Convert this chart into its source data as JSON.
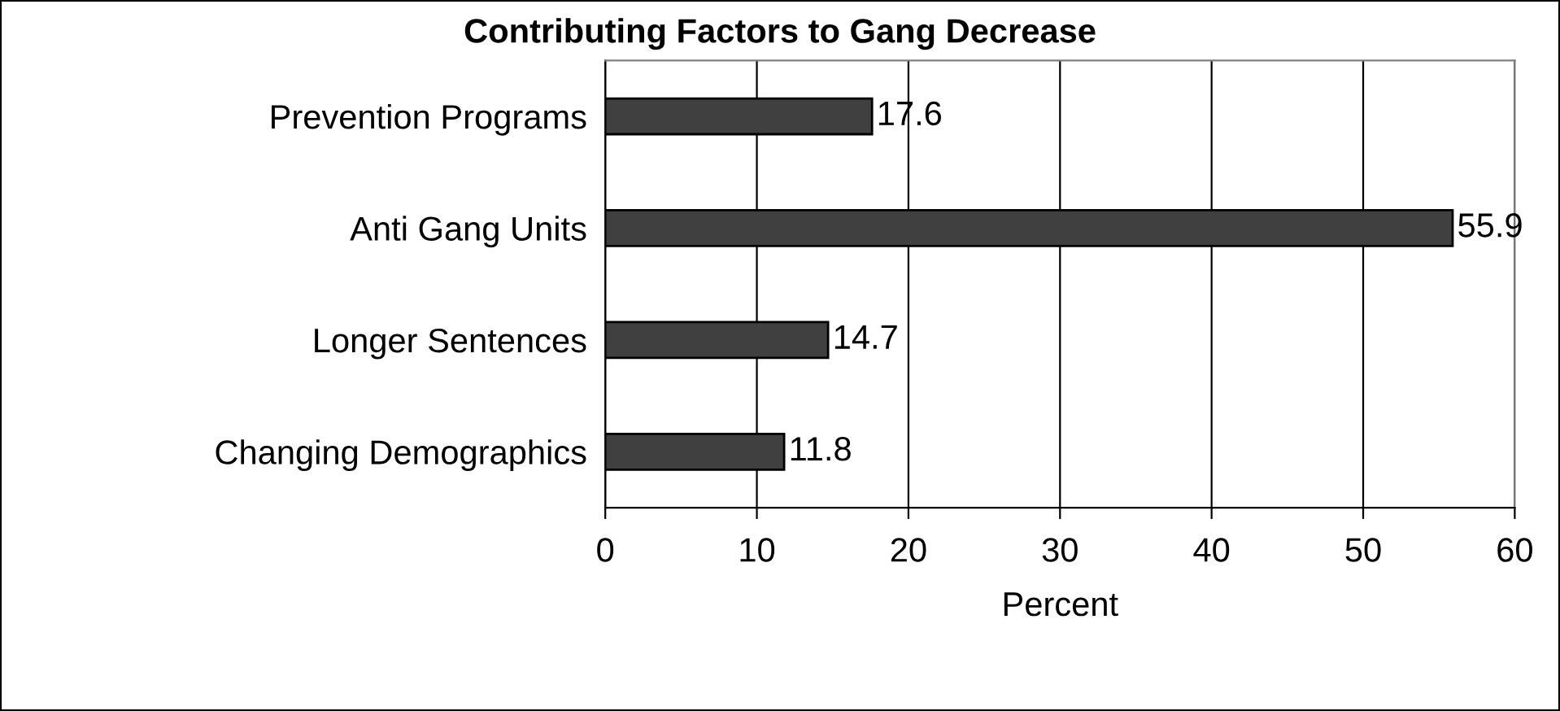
{
  "chart_data": {
    "type": "bar",
    "orientation": "horizontal",
    "title": "Contributing Factors to Gang Decrease",
    "xlabel": "Percent",
    "categories": [
      "Prevention Programs",
      "Anti Gang Units",
      "Longer Sentences",
      "Changing Demographics"
    ],
    "values": [
      17.6,
      55.9,
      14.7,
      11.8
    ],
    "color": "#404040",
    "xlim": [
      0,
      60
    ],
    "xticks": [
      0,
      10,
      20,
      30,
      40,
      50,
      60
    ],
    "grid": "x",
    "data_labels": true
  }
}
